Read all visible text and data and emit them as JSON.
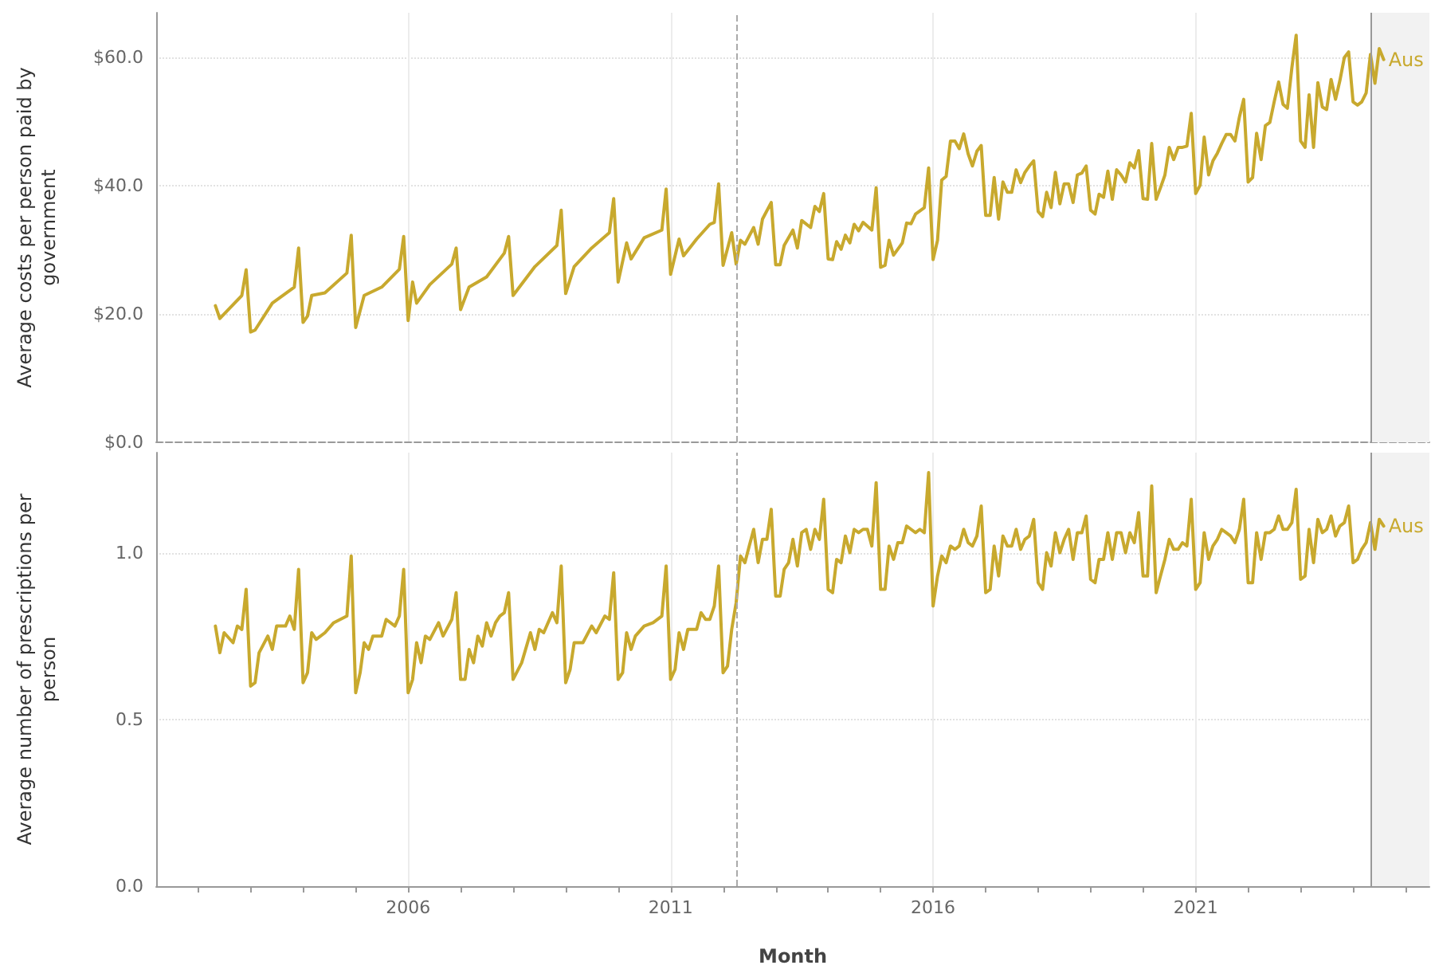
{
  "chart_data": [
    {
      "type": "line",
      "ylabel": "Average costs per person paid by government",
      "xlim": [
        "2001-03-15",
        "2025-06-15"
      ],
      "xticks": [
        "2006",
        "2011",
        "2016",
        "2021"
      ],
      "ylim": [
        0,
        67
      ],
      "yticks": [
        {
          "value": 0,
          "label": "$0.0"
        },
        {
          "value": 20,
          "label": "$20.0"
        },
        {
          "value": 40,
          "label": "$40.0"
        },
        {
          "value": 60,
          "label": "$60.0"
        }
      ],
      "tick_labels": "y",
      "grid": true,
      "legend": false,
      "marker": "none",
      "line_style": "solid",
      "ref_lines": [
        {
          "axis": "x",
          "value": "2012-04",
          "color": "#aaaaaa",
          "line_style": "dashed"
        },
        {
          "axis": "x",
          "value": "2024-05",
          "color": "#999999",
          "line_style": "solid"
        }
      ],
      "bands": [
        {
          "axis": "x",
          "from": "2024-05",
          "to": "2025-06-15",
          "color": "#f2f2f2"
        }
      ],
      "series": [
        {
          "name": "Aus",
          "color": "#c8a92e",
          "x": [
            "2002-05",
            "2002-06",
            "2002-11",
            "2002-12",
            "2003-01",
            "2003-02",
            "2003-06",
            "2003-11",
            "2003-12",
            "2004-01",
            "2004-02",
            "2004-03",
            "2004-06",
            "2004-11",
            "2004-12",
            "2005-01",
            "2005-03",
            "2005-07",
            "2005-11",
            "2005-12",
            "2006-01",
            "2006-02",
            "2006-03",
            "2006-06",
            "2006-11",
            "2006-12",
            "2007-01",
            "2007-03",
            "2007-07",
            "2007-11",
            "2007-12",
            "2008-01",
            "2008-06",
            "2008-11",
            "2008-12",
            "2009-01",
            "2009-03",
            "2009-07",
            "2009-11",
            "2009-12",
            "2010-01",
            "2010-03",
            "2010-04",
            "2010-07",
            "2010-11",
            "2010-12",
            "2011-01",
            "2011-03",
            "2011-04",
            "2011-07",
            "2011-10",
            "2011-11",
            "2011-12",
            "2012-01",
            "2012-03",
            "2012-04",
            "2012-05",
            "2012-06",
            "2012-08",
            "2012-09",
            "2012-10",
            "2012-12",
            "2013-01",
            "2013-02",
            "2013-03",
            "2013-05",
            "2013-06",
            "2013-07",
            "2013-09",
            "2013-10",
            "2013-11",
            "2013-12",
            "2014-01",
            "2014-02",
            "2014-03",
            "2014-04",
            "2014-05",
            "2014-06",
            "2014-07",
            "2014-08",
            "2014-09",
            "2014-11",
            "2014-12",
            "2015-01",
            "2015-02",
            "2015-03",
            "2015-04",
            "2015-06",
            "2015-07",
            "2015-08",
            "2015-09",
            "2015-11",
            "2015-12",
            "2016-01",
            "2016-02",
            "2016-03",
            "2016-04",
            "2016-05",
            "2016-06",
            "2016-07",
            "2016-08",
            "2016-09",
            "2016-10",
            "2016-11",
            "2016-12",
            "2017-01",
            "2017-02",
            "2017-03",
            "2017-04",
            "2017-05",
            "2017-06",
            "2017-07",
            "2017-08",
            "2017-09",
            "2017-10",
            "2017-11",
            "2017-12",
            "2018-01",
            "2018-02",
            "2018-03",
            "2018-04",
            "2018-05",
            "2018-06",
            "2018-07",
            "2018-08",
            "2018-09",
            "2018-10",
            "2018-11",
            "2018-12",
            "2019-01",
            "2019-02",
            "2019-03",
            "2019-04",
            "2019-05",
            "2019-06",
            "2019-07",
            "2019-08",
            "2019-09",
            "2019-10",
            "2019-11",
            "2019-12",
            "2020-01",
            "2020-02",
            "2020-03",
            "2020-04",
            "2020-05",
            "2020-06",
            "2020-07",
            "2020-08",
            "2020-09",
            "2020-10",
            "2020-11",
            "2020-12",
            "2021-01",
            "2021-02",
            "2021-03",
            "2021-04",
            "2021-05",
            "2021-06",
            "2021-07",
            "2021-08",
            "2021-09",
            "2021-10",
            "2021-11",
            "2021-12",
            "2022-01",
            "2022-02",
            "2022-03",
            "2022-04",
            "2022-05",
            "2022-06",
            "2022-07",
            "2022-08",
            "2022-09",
            "2022-10",
            "2022-11",
            "2022-12",
            "2023-01",
            "2023-02",
            "2023-03",
            "2023-04",
            "2023-05",
            "2023-06",
            "2023-07",
            "2023-08",
            "2023-09",
            "2023-10",
            "2023-11",
            "2023-12",
            "2024-01",
            "2024-02",
            "2024-03",
            "2024-04",
            "2024-05",
            "2024-06",
            "2024-07",
            "2024-08"
          ],
          "values": [
            21.3,
            19.3,
            22.9,
            26.9,
            17.2,
            17.5,
            21.7,
            24.2,
            30.3,
            18.7,
            19.7,
            22.9,
            23.3,
            26.4,
            32.3,
            17.9,
            22.9,
            24.2,
            27.0,
            32.1,
            19.0,
            25.0,
            21.7,
            24.6,
            27.8,
            30.3,
            20.7,
            24.2,
            25.8,
            29.5,
            32.1,
            22.9,
            27.4,
            30.7,
            36.2,
            23.2,
            27.4,
            30.3,
            32.7,
            38.0,
            25.0,
            31.1,
            28.6,
            31.9,
            33.1,
            39.5,
            26.2,
            31.7,
            29.1,
            31.7,
            34.0,
            34.3,
            40.3,
            27.6,
            32.7,
            27.8,
            31.5,
            30.9,
            33.5,
            30.9,
            34.8,
            37.4,
            27.7,
            27.7,
            30.7,
            33.1,
            30.3,
            34.6,
            33.5,
            36.8,
            36.0,
            38.8,
            28.6,
            28.5,
            31.3,
            30.1,
            32.3,
            31.1,
            34.0,
            33.0,
            34.3,
            33.1,
            39.7,
            27.3,
            27.6,
            31.5,
            29.2,
            31.1,
            34.2,
            34.1,
            35.6,
            36.6,
            42.8,
            28.5,
            31.5,
            40.9,
            41.5,
            47.0,
            47.0,
            45.8,
            48.1,
            45.0,
            43.1,
            45.4,
            46.3,
            35.4,
            35.4,
            41.3,
            34.8,
            40.6,
            39.0,
            39.0,
            42.5,
            40.5,
            42.1,
            43.1,
            43.9,
            36.0,
            35.2,
            39.0,
            36.6,
            42.1,
            37.2,
            40.3,
            40.3,
            37.4,
            41.7,
            42.0,
            43.1,
            36.2,
            35.6,
            38.7,
            38.2,
            42.3,
            37.9,
            42.5,
            41.7,
            40.6,
            43.6,
            42.8,
            45.5,
            38.0,
            37.9,
            46.6,
            37.9,
            39.7,
            41.7,
            46.0,
            44.1,
            46.0,
            46.0,
            46.2,
            51.3,
            38.8,
            40.1,
            47.6,
            41.7,
            43.9,
            45.1,
            46.6,
            48.0,
            48.0,
            47.0,
            50.7,
            53.5,
            40.6,
            41.3,
            48.2,
            44.1,
            49.4,
            49.9,
            53.1,
            56.2,
            52.7,
            52.1,
            58.4,
            63.5,
            47.0,
            46.0,
            54.2,
            46.0,
            56.1,
            52.3,
            51.9,
            56.6,
            53.5,
            56.4,
            60.0,
            60.9,
            53.1,
            52.6,
            53.1,
            54.5,
            60.5,
            56.0,
            61.4,
            59.7
          ]
        }
      ]
    },
    {
      "type": "line",
      "ylabel": "Average number of prescriptions per person",
      "xlabel": "Month",
      "xlim": [
        "2001-03-15",
        "2025-06-15"
      ],
      "xticks": [
        {
          "value": "2002",
          "label": null
        },
        {
          "value": "2003",
          "label": null
        },
        {
          "value": "2004",
          "label": null
        },
        {
          "value": "2005",
          "label": null
        },
        {
          "value": "2006",
          "label": "2006"
        },
        {
          "value": "2007",
          "label": null
        },
        {
          "value": "2008",
          "label": null
        },
        {
          "value": "2009",
          "label": null
        },
        {
          "value": "2010",
          "label": null
        },
        {
          "value": "2011",
          "label": "2011"
        },
        {
          "value": "2012",
          "label": null
        },
        {
          "value": "2013",
          "label": null
        },
        {
          "value": "2014",
          "label": null
        },
        {
          "value": "2015",
          "label": null
        },
        {
          "value": "2016",
          "label": "2016"
        },
        {
          "value": "2017",
          "label": null
        },
        {
          "value": "2018",
          "label": null
        },
        {
          "value": "2019",
          "label": null
        },
        {
          "value": "2020",
          "label": null
        },
        {
          "value": "2021",
          "label": "2021"
        },
        {
          "value": "2022",
          "label": null
        },
        {
          "value": "2023",
          "label": null
        },
        {
          "value": "2024",
          "label": null
        },
        {
          "value": "2025",
          "label": null
        }
      ],
      "ylim": [
        0,
        1.3
      ],
      "yticks": [
        {
          "value": 0,
          "label": "0.0"
        },
        0.5,
        {
          "value": 1,
          "label": "1.0"
        }
      ],
      "grid": true,
      "legend": false,
      "marker": "none",
      "line_style": "solid",
      "ref_lines": [
        {
          "axis": "x",
          "value": "2012-04",
          "color": "#aaaaaa",
          "line_style": "dashed"
        },
        {
          "axis": "x",
          "value": "2024-05",
          "color": "#999999",
          "line_style": "solid"
        }
      ],
      "bands": [
        {
          "axis": "x",
          "from": "2024-05",
          "to": "2025-06-15",
          "color": "#f2f2f2"
        }
      ],
      "series": [
        {
          "name": "Aus",
          "color": "#c8a92e",
          "x": [
            "2002-05",
            "2002-06",
            "2002-07",
            "2002-09",
            "2002-10",
            "2002-11",
            "2002-12",
            "2003-01",
            "2003-02",
            "2003-03",
            "2003-05",
            "2003-06",
            "2003-07",
            "2003-09",
            "2003-10",
            "2003-11",
            "2003-12",
            "2004-01",
            "2004-02",
            "2004-03",
            "2004-04",
            "2004-06",
            "2004-08",
            "2004-11",
            "2004-12",
            "2005-01",
            "2005-02",
            "2005-03",
            "2005-04",
            "2005-05",
            "2005-07",
            "2005-08",
            "2005-10",
            "2005-11",
            "2005-12",
            "2006-01",
            "2006-02",
            "2006-03",
            "2006-04",
            "2006-05",
            "2006-06",
            "2006-08",
            "2006-09",
            "2006-11",
            "2006-12",
            "2007-01",
            "2007-02",
            "2007-03",
            "2007-04",
            "2007-05",
            "2007-06",
            "2007-07",
            "2007-08",
            "2007-09",
            "2007-10",
            "2007-11",
            "2007-12",
            "2008-01",
            "2008-03",
            "2008-05",
            "2008-06",
            "2008-07",
            "2008-08",
            "2008-10",
            "2008-11",
            "2008-12",
            "2009-01",
            "2009-02",
            "2009-03",
            "2009-05",
            "2009-07",
            "2009-08",
            "2009-10",
            "2009-11",
            "2009-12",
            "2010-01",
            "2010-02",
            "2010-03",
            "2010-04",
            "2010-05",
            "2010-07",
            "2010-09",
            "2010-11",
            "2010-12",
            "2011-01",
            "2011-02",
            "2011-03",
            "2011-04",
            "2011-05",
            "2011-07",
            "2011-08",
            "2011-09",
            "2011-10",
            "2011-11",
            "2011-12",
            "2012-01",
            "2012-02",
            "2012-03",
            "2012-04",
            "2012-05",
            "2012-06",
            "2012-07",
            "2012-08",
            "2012-09",
            "2012-10",
            "2012-11",
            "2012-12",
            "2013-01",
            "2013-02",
            "2013-03",
            "2013-04",
            "2013-05",
            "2013-06",
            "2013-07",
            "2013-08",
            "2013-09",
            "2013-10",
            "2013-11",
            "2013-12",
            "2014-01",
            "2014-02",
            "2014-03",
            "2014-04",
            "2014-05",
            "2014-06",
            "2014-07",
            "2014-08",
            "2014-09",
            "2014-10",
            "2014-11",
            "2014-12",
            "2015-01",
            "2015-02",
            "2015-03",
            "2015-04",
            "2015-05",
            "2015-06",
            "2015-07",
            "2015-08",
            "2015-09",
            "2015-10",
            "2015-11",
            "2015-12",
            "2016-01",
            "2016-02",
            "2016-03",
            "2016-04",
            "2016-05",
            "2016-06",
            "2016-07",
            "2016-08",
            "2016-09",
            "2016-10",
            "2016-11",
            "2016-12",
            "2017-01",
            "2017-02",
            "2017-03",
            "2017-04",
            "2017-05",
            "2017-06",
            "2017-07",
            "2017-08",
            "2017-09",
            "2017-10",
            "2017-11",
            "2017-12",
            "2018-01",
            "2018-02",
            "2018-03",
            "2018-04",
            "2018-05",
            "2018-06",
            "2018-07",
            "2018-08",
            "2018-09",
            "2018-10",
            "2018-11",
            "2018-12",
            "2019-01",
            "2019-02",
            "2019-03",
            "2019-04",
            "2019-05",
            "2019-06",
            "2019-07",
            "2019-08",
            "2019-09",
            "2019-10",
            "2019-11",
            "2019-12",
            "2020-01",
            "2020-02",
            "2020-03",
            "2020-04",
            "2020-05",
            "2020-06",
            "2020-07",
            "2020-08",
            "2020-09",
            "2020-10",
            "2020-11",
            "2020-12",
            "2021-01",
            "2021-02",
            "2021-03",
            "2021-04",
            "2021-05",
            "2021-06",
            "2021-07",
            "2021-08",
            "2021-09",
            "2021-10",
            "2021-11",
            "2021-12",
            "2022-01",
            "2022-02",
            "2022-03",
            "2022-04",
            "2022-05",
            "2022-06",
            "2022-07",
            "2022-08",
            "2022-09",
            "2022-10",
            "2022-11",
            "2022-12",
            "2023-01",
            "2023-02",
            "2023-03",
            "2023-04",
            "2023-05",
            "2023-06",
            "2023-07",
            "2023-08",
            "2023-09",
            "2023-10",
            "2023-11",
            "2023-12",
            "2024-01",
            "2024-02",
            "2024-03",
            "2024-04",
            "2024-05",
            "2024-06",
            "2024-07",
            "2024-08"
          ],
          "values": [
            0.78,
            0.7,
            0.76,
            0.73,
            0.78,
            0.77,
            0.89,
            0.6,
            0.61,
            0.7,
            0.75,
            0.71,
            0.78,
            0.78,
            0.81,
            0.77,
            0.95,
            0.61,
            0.64,
            0.76,
            0.74,
            0.76,
            0.79,
            0.81,
            0.99,
            0.58,
            0.64,
            0.73,
            0.71,
            0.75,
            0.75,
            0.8,
            0.78,
            0.81,
            0.95,
            0.58,
            0.62,
            0.73,
            0.67,
            0.75,
            0.74,
            0.79,
            0.75,
            0.8,
            0.88,
            0.62,
            0.62,
            0.71,
            0.67,
            0.75,
            0.72,
            0.79,
            0.75,
            0.79,
            0.81,
            0.82,
            0.88,
            0.62,
            0.67,
            0.76,
            0.71,
            0.77,
            0.76,
            0.82,
            0.79,
            0.96,
            0.61,
            0.65,
            0.73,
            0.73,
            0.78,
            0.76,
            0.81,
            0.8,
            0.94,
            0.62,
            0.64,
            0.76,
            0.71,
            0.75,
            0.78,
            0.79,
            0.81,
            0.96,
            0.62,
            0.65,
            0.76,
            0.71,
            0.77,
            0.77,
            0.82,
            0.8,
            0.8,
            0.84,
            0.96,
            0.64,
            0.66,
            0.77,
            0.85,
            0.99,
            0.97,
            1.02,
            1.07,
            0.97,
            1.04,
            1.04,
            1.13,
            0.87,
            0.87,
            0.95,
            0.97,
            1.04,
            0.96,
            1.06,
            1.07,
            1.01,
            1.07,
            1.04,
            1.16,
            0.89,
            0.88,
            0.98,
            0.97,
            1.05,
            1.0,
            1.07,
            1.06,
            1.07,
            1.07,
            1.02,
            1.21,
            0.89,
            0.89,
            1.02,
            0.98,
            1.03,
            1.03,
            1.08,
            1.07,
            1.06,
            1.07,
            1.06,
            1.24,
            0.84,
            0.93,
            0.99,
            0.97,
            1.02,
            1.01,
            1.02,
            1.07,
            1.03,
            1.02,
            1.05,
            1.14,
            0.88,
            0.89,
            1.02,
            0.93,
            1.05,
            1.02,
            1.02,
            1.07,
            1.01,
            1.04,
            1.05,
            1.1,
            0.91,
            0.89,
            1.0,
            0.96,
            1.06,
            1.0,
            1.04,
            1.07,
            0.98,
            1.06,
            1.06,
            1.11,
            0.92,
            0.91,
            0.98,
            0.98,
            1.06,
            0.98,
            1.06,
            1.06,
            1.0,
            1.06,
            1.03,
            1.12,
            0.93,
            0.93,
            1.2,
            0.88,
            0.93,
            0.98,
            1.04,
            1.01,
            1.01,
            1.03,
            1.02,
            1.16,
            0.89,
            0.91,
            1.06,
            0.98,
            1.02,
            1.04,
            1.07,
            1.06,
            1.05,
            1.03,
            1.07,
            1.16,
            0.91,
            0.91,
            1.06,
            0.98,
            1.06,
            1.06,
            1.07,
            1.11,
            1.07,
            1.07,
            1.09,
            1.19,
            0.92,
            0.93,
            1.07,
            0.97,
            1.1,
            1.06,
            1.07,
            1.11,
            1.05,
            1.08,
            1.09,
            1.14,
            0.97,
            0.98,
            1.01,
            1.03,
            1.09,
            1.01,
            1.1,
            1.08
          ]
        }
      ]
    }
  ]
}
